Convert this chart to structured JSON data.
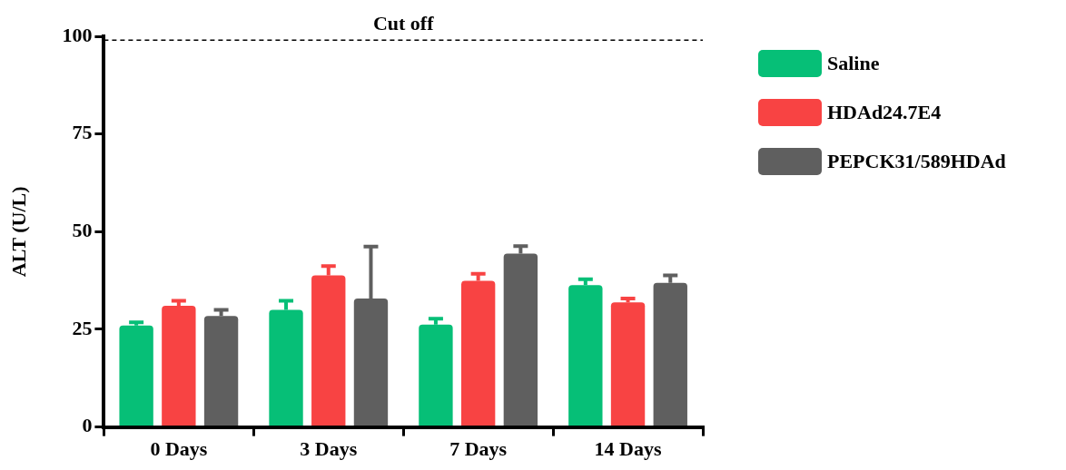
{
  "chart_data": {
    "type": "bar",
    "ylabel": "ALT (U/L)",
    "categories": [
      "0 Days",
      "3 Days",
      "7 Days",
      "14 Days"
    ],
    "series": [
      {
        "name": "Saline",
        "color": "#06bf77",
        "values": [
          26.0,
          30.0,
          26.2,
          36.3
        ],
        "errors": [
          [
            26.0,
            26.8
          ],
          [
            30.0,
            32.3
          ],
          [
            26.2,
            27.7
          ],
          [
            36.3,
            37.8
          ]
        ]
      },
      {
        "name": "HDAd24.7E4",
        "color": "#f84343",
        "values": [
          31.0,
          38.8,
          37.4,
          31.9
        ],
        "errors": [
          [
            31.0,
            32.3
          ],
          [
            38.8,
            41.2
          ],
          [
            37.4,
            39.2
          ],
          [
            31.9,
            32.9
          ]
        ]
      },
      {
        "name": "PEPCK31/589HDAd",
        "color": "#5f5f5f",
        "values": [
          28.4,
          32.9,
          44.4,
          36.9
        ],
        "errors": [
          [
            28.4,
            30.0
          ],
          [
            32.9,
            46.2
          ],
          [
            44.4,
            46.3
          ],
          [
            36.9,
            38.8
          ]
        ]
      }
    ],
    "ylim": [
      0,
      100
    ],
    "yticks": [
      0,
      25,
      50,
      75,
      100
    ],
    "grid": false,
    "legend": "right",
    "ref_lines": [
      {
        "axis": "y",
        "value": 99,
        "label": "Cut off",
        "line_style": "dashed",
        "color": "#000000"
      }
    ]
  }
}
